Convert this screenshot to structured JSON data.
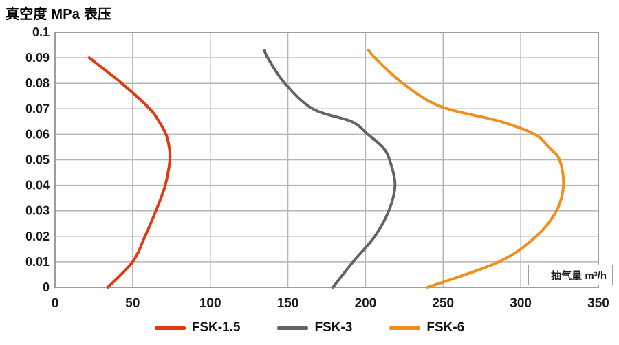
{
  "chart_data": {
    "type": "line",
    "title": "真空度 MPa 表压",
    "xlabel": "抽气量 m³/h",
    "ylabel": "真空度 MPa 表压",
    "xlim": [
      0,
      350
    ],
    "ylim": [
      0,
      0.1
    ],
    "grid": true,
    "legend_position": "bottom",
    "x_ticks": [
      {
        "value": 0,
        "label": "0"
      },
      {
        "value": 50,
        "label": "50"
      },
      {
        "value": 100,
        "label": "100"
      },
      {
        "value": 150,
        "label": "150"
      },
      {
        "value": 200,
        "label": "200"
      },
      {
        "value": 250,
        "label": "250"
      },
      {
        "value": 300,
        "label": "300"
      },
      {
        "value": 350,
        "label": "350"
      }
    ],
    "y_ticks": [
      {
        "value": 0,
        "label": "0"
      },
      {
        "value": 0.01,
        "label": "0.01"
      },
      {
        "value": 0.02,
        "label": "0.02"
      },
      {
        "value": 0.03,
        "label": "0.03"
      },
      {
        "value": 0.04,
        "label": "0.04"
      },
      {
        "value": 0.05,
        "label": "0.05"
      },
      {
        "value": 0.06,
        "label": "0.06"
      },
      {
        "value": 0.07,
        "label": "0.07"
      },
      {
        "value": 0.08,
        "label": "0.08"
      },
      {
        "value": 0.09,
        "label": "0.09"
      },
      {
        "value": 0.1,
        "label": "0.1"
      }
    ],
    "series": [
      {
        "name": "FSK-1.5",
        "color": "#e03a10",
        "points": [
          [
            34,
            0
          ],
          [
            50,
            0.01
          ],
          [
            58,
            0.02
          ],
          [
            65,
            0.03
          ],
          [
            71,
            0.04
          ],
          [
            74,
            0.05
          ],
          [
            73.5,
            0.055
          ],
          [
            71.5,
            0.06
          ],
          [
            67,
            0.065
          ],
          [
            61,
            0.07
          ],
          [
            43,
            0.08
          ],
          [
            22,
            0.09
          ]
        ]
      },
      {
        "name": "FSK-3",
        "color": "#646464",
        "points": [
          [
            179,
            0
          ],
          [
            192,
            0.01
          ],
          [
            206,
            0.02
          ],
          [
            215,
            0.03
          ],
          [
            219,
            0.04
          ],
          [
            215.5,
            0.05
          ],
          [
            211,
            0.055
          ],
          [
            201.5,
            0.06
          ],
          [
            191,
            0.065
          ],
          [
            166,
            0.07
          ],
          [
            148,
            0.08
          ],
          [
            137,
            0.09
          ],
          [
            135,
            0.093
          ]
        ]
      },
      {
        "name": "FSK-6",
        "color": "#f28e1c",
        "points": [
          [
            240,
            0
          ],
          [
            286,
            0.01
          ],
          [
            310,
            0.02
          ],
          [
            323,
            0.03
          ],
          [
            327.5,
            0.04
          ],
          [
            325,
            0.05
          ],
          [
            318,
            0.055
          ],
          [
            309,
            0.06
          ],
          [
            287,
            0.065
          ],
          [
            248,
            0.071
          ],
          [
            224,
            0.08
          ],
          [
            206,
            0.09
          ],
          [
            202,
            0.093
          ]
        ]
      }
    ],
    "colors": {
      "grid": "#b5b5b5",
      "axis_border": "#9e9e9e",
      "tick_text": "#1a1a1a",
      "title_text": "#000000",
      "unit_box_bg": "#ffffff"
    }
  }
}
